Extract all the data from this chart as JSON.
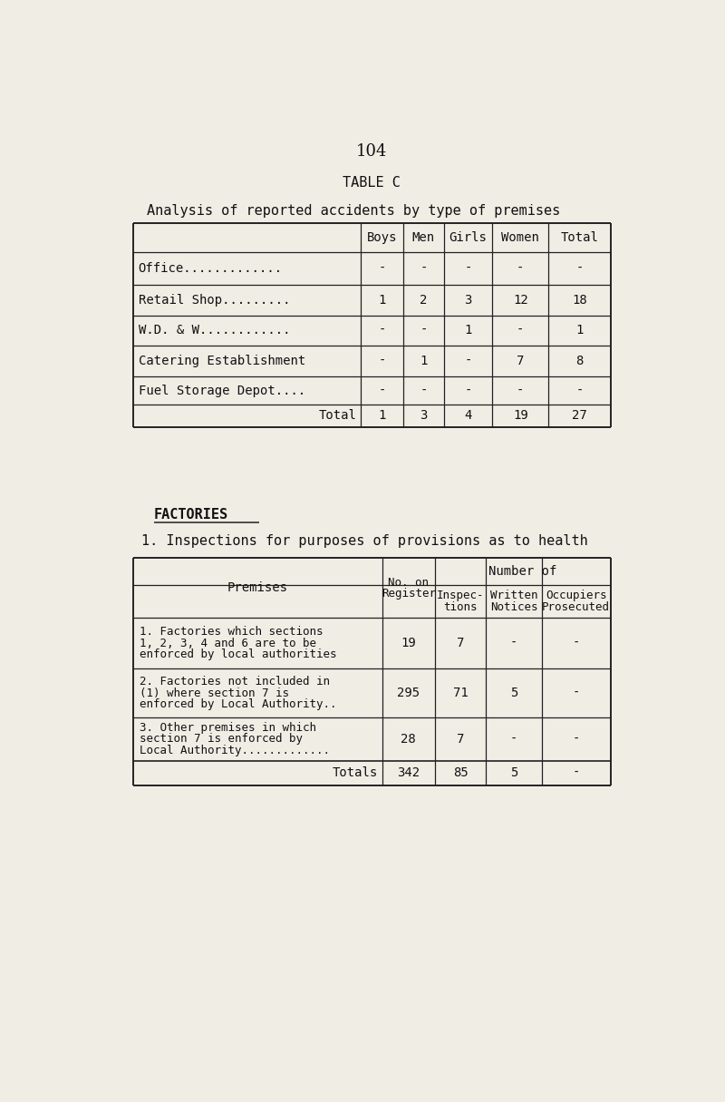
{
  "page_number": "104",
  "table_c_title": "TABLE C",
  "table1_subtitle": "Analysis of reported accidents by type of premises",
  "table1_headers": [
    "Boys",
    "Men",
    "Girls",
    "Women",
    "Total"
  ],
  "table1_rows": [
    [
      "Office.............",
      "-",
      "-",
      "-",
      "-",
      "-"
    ],
    [
      "Retail Shop.........",
      "1",
      "2",
      "3",
      "12",
      "18"
    ],
    [
      "W.D. & W............",
      "-",
      "-",
      "1",
      "-",
      "1"
    ],
    [
      "Catering Establishment",
      "-",
      "1",
      "-",
      "7",
      "8"
    ],
    [
      "Fuel Storage Depot....",
      "-",
      "-",
      "-",
      "-",
      "-"
    ],
    [
      "Total",
      "1",
      "3",
      "4",
      "19",
      "27"
    ]
  ],
  "factories_heading": "FACTORIES",
  "factories_subtitle": "1. Inspections for purposes of provisions as to health",
  "table2_rows": [
    [
      "1. Factories which sections\n1, 2, 3, 4 and 6 are to be\nenforced by local authorities",
      "19",
      "7",
      "-",
      "-"
    ],
    [
      "2. Factories not included in\n(1) where section 7 is\nenforced by Local Authority..",
      "295",
      "71",
      "5",
      "-"
    ],
    [
      "3. Other premises in which\nsection 7 is enforced by\nLocal Authority.............",
      "28",
      "7",
      "-",
      "-"
    ],
    [
      "Totals",
      "342",
      "85",
      "5",
      "-"
    ]
  ],
  "bg_color": "#f0ede5",
  "text_color": "#111111",
  "line_color": "#222222"
}
